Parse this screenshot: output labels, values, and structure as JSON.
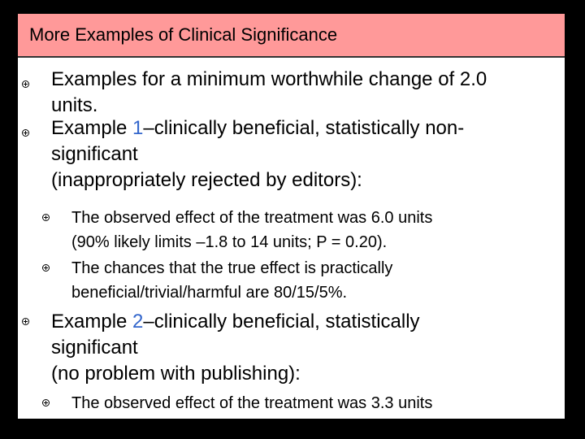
{
  "slide": {
    "title": "More Examples of Clinical Significance",
    "colors": {
      "title_background": "#ff9999",
      "accent": "#3366cc",
      "background": "#000000"
    },
    "bullet_icon": "circled-plus-bullet",
    "items": [
      {
        "level": 1,
        "lines": [
          "Examples for a minimum worthwhile change of 2.0",
          "units."
        ]
      },
      {
        "level": 1,
        "prefix": "Example ",
        "accent": "1",
        "lines": [
          "–clinically beneficial, statistically non-",
          "significant",
          "(inappropriately rejected by editors):"
        ]
      },
      {
        "level": 2,
        "lines": [
          "The observed effect of the treatment was 6.0 units",
          "(90% likely limits –1.8 to 14 units; P = 0.20)."
        ]
      },
      {
        "level": 2,
        "lines": [
          "The chances that the true effect is practically",
          "beneficial/trivial/harmful are 80/15/5%."
        ]
      },
      {
        "level": 1,
        "prefix": "Example ",
        "accent": "2",
        "lines": [
          "–clinically beneficial, statistically",
          "significant",
          "(no problem with publishing):"
        ]
      },
      {
        "level": 2,
        "lines": [
          "The observed effect of the treatment was 3.3 units"
        ]
      }
    ]
  }
}
